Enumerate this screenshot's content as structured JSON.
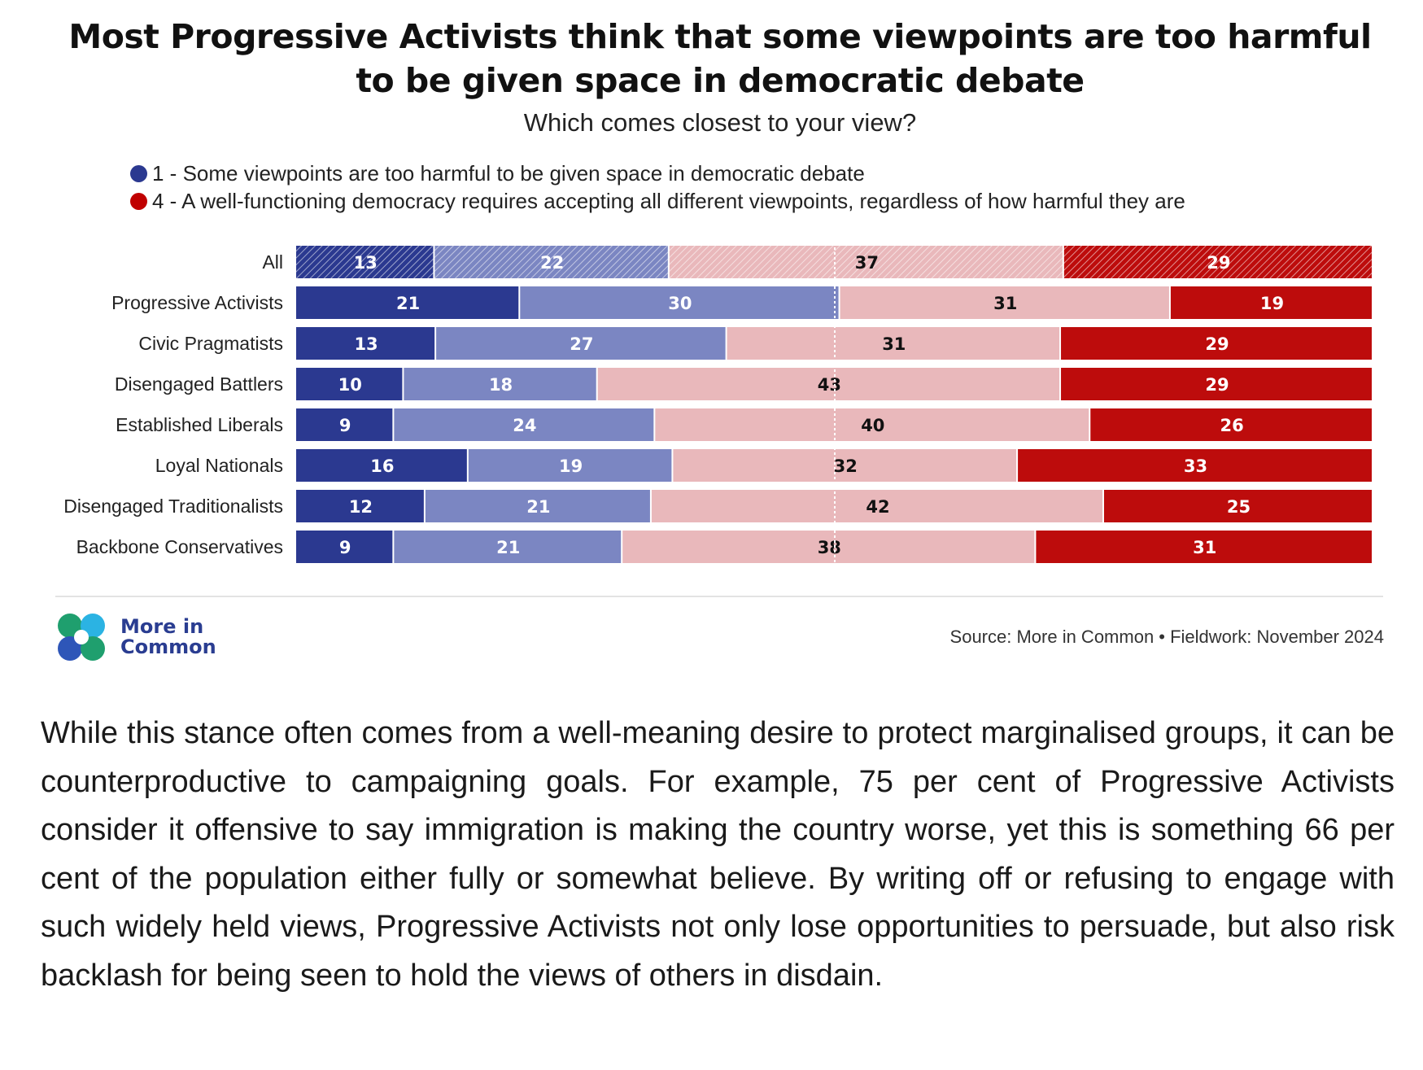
{
  "title": "Most Progressive Activists think that some viewpoints are too harmful to be given space in democratic debate",
  "subtitle": "Which comes closest to your view?",
  "legend": [
    {
      "label": "1 - Some viewpoints are too harmful to be given space in democratic debate",
      "color": "#2b3990"
    },
    {
      "label": "4 - A well-functioning democracy requires accepting all different viewpoints, regardless of how harmful they are",
      "color": "#c00000"
    }
  ],
  "colors": {
    "strong_harmful": "#2b3990",
    "lean_harmful": "#7b86c2",
    "lean_accept": "#e9b8bb",
    "strong_accept": "#bd0c0c",
    "center_line": "#ffffff"
  },
  "chart_data": {
    "type": "bar",
    "orientation": "horizontal",
    "stacked": true,
    "normalized": true,
    "midline": 50,
    "categories": [
      "All",
      "Progressive Activists",
      "Civic Pragmatists",
      "Disengaged Battlers",
      "Established Liberals",
      "Loyal Nationals",
      "Disengaged Traditionalists",
      "Backbone Conservatives"
    ],
    "hatched_categories": [
      "All"
    ],
    "series": [
      {
        "values": [
          13,
          21,
          13,
          10,
          9,
          16,
          12,
          9
        ]
      },
      {
        "values": [
          22,
          30,
          27,
          18,
          24,
          19,
          21,
          21
        ]
      },
      {
        "values": [
          37,
          31,
          31,
          43,
          40,
          32,
          42,
          38
        ]
      },
      {
        "values": [
          29,
          19,
          29,
          29,
          26,
          33,
          25,
          31
        ]
      }
    ]
  },
  "logo": {
    "line1": "More in",
    "line2": "Common"
  },
  "source": "Source: More in Common • Fieldwork: November 2024",
  "body_text": "While this stance often comes from a well-meaning desire to protect marginalised groups, it can be counterproductive to campaigning goals. For example, 75 per cent of Progressive Activists consider it offensive to say immigration is making the country worse, yet this is something 66 per cent of the population either fully or somewhat believe. By writing off or refusing to engage with such widely held views, Progressive Activists not only lose opportunities to persuade, but also risk backlash for being seen to hold the views of others in disdain."
}
